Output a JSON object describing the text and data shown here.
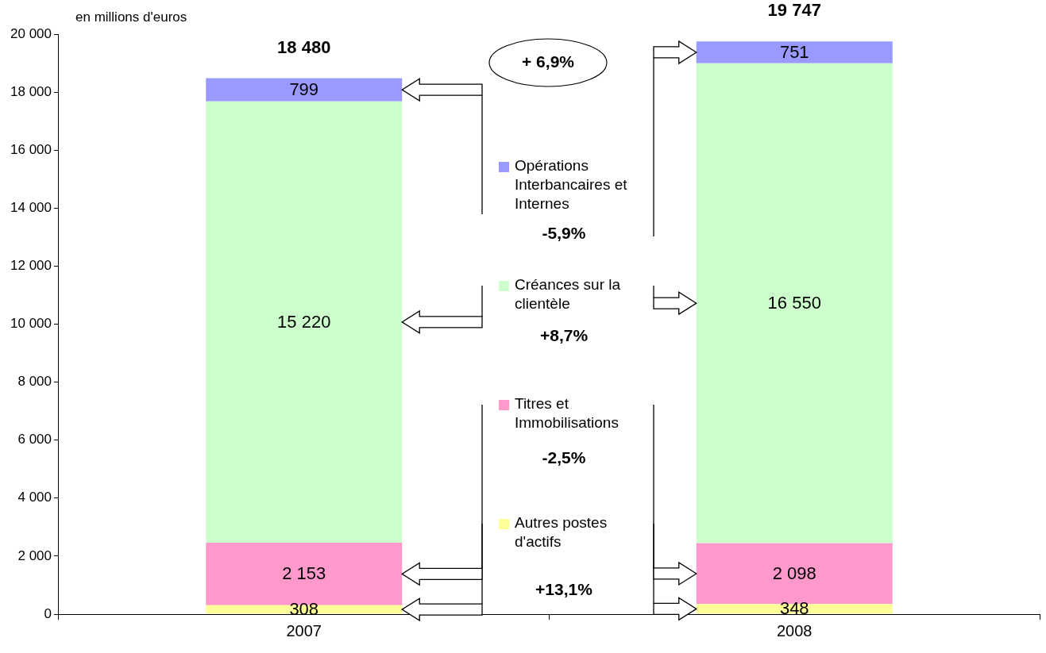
{
  "chart_data": {
    "type": "bar",
    "stacked": true,
    "ylabel": "en millions d'euros",
    "categories": [
      "2007",
      "2008"
    ],
    "ylim": [
      0,
      20000
    ],
    "yticks": [
      {
        "value": 0,
        "label": "0"
      },
      {
        "value": 2000,
        "label": "2 000"
      },
      {
        "value": 4000,
        "label": "4 000"
      },
      {
        "value": 6000,
        "label": "6 000"
      },
      {
        "value": 8000,
        "label": "8 000"
      },
      {
        "value": 10000,
        "label": "10 000"
      },
      {
        "value": 12000,
        "label": "12 000"
      },
      {
        "value": 14000,
        "label": "14 000"
      },
      {
        "value": 16000,
        "label": "16 000"
      },
      {
        "value": 18000,
        "label": "18 000"
      },
      {
        "value": 20000,
        "label": "20 000"
      }
    ],
    "grid": false,
    "legend": "center",
    "series": [
      {
        "name": "Autres postes d'actifs",
        "color": "#ffff99",
        "values": [
          308,
          348
        ],
        "value_labels": [
          "308",
          "348"
        ]
      },
      {
        "name": "Titres et Immobilisations",
        "color": "#ff99cc",
        "values": [
          2153,
          2098
        ],
        "value_labels": [
          "2 153",
          "2 098"
        ]
      },
      {
        "name": "Créances sur la clientèle",
        "color": "#ccffcc",
        "values": [
          15220,
          16550
        ],
        "value_labels": [
          "15 220",
          "16 550"
        ]
      },
      {
        "name": "Opérations Interbancaires et Internes",
        "color": "#9999ff",
        "values": [
          799,
          751
        ],
        "value_labels": [
          "799",
          "751"
        ]
      }
    ],
    "totals": [
      "18 480",
      "19 747"
    ],
    "annotations": [
      "+ 6,9%",
      "-5,9%",
      "+8,7%",
      "-2,5%",
      "+13,1%"
    ]
  }
}
